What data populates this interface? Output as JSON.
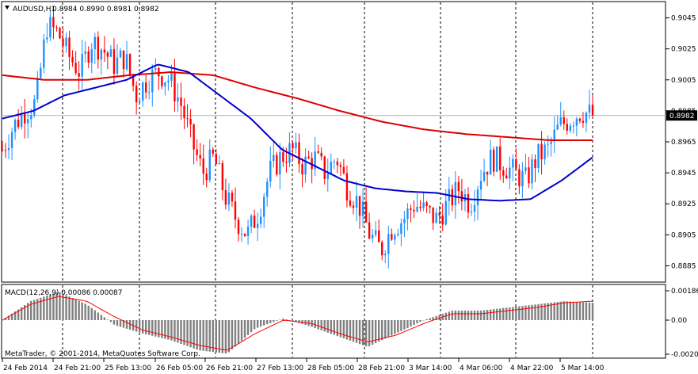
{
  "window": {
    "symbol_label": "AUDUSD,H1",
    "ohlc_label": "0.8984 0.8990 0.8981 0.8982",
    "copyright": "MetaTrader, © 2001-2014, MetaQuotes Software Corp.",
    "current_price_label": "0.8982"
  },
  "macd_panel": {
    "title": "MACD(12,26,9) 0.00086 0.00087",
    "yticks": [
      "0.00186",
      "0.00",
      "-0.00203"
    ]
  },
  "colors": {
    "background": "#ffffff",
    "bull_candle": "#1e90ff",
    "bear_candle": "#ff0000",
    "ma_fast": "#0000cd",
    "ma_slow": "#dd0000",
    "macd_hist": "#808080",
    "macd_signal": "#ff0000",
    "price_marker": "#000000"
  },
  "chart_data": {
    "type": "candlestick",
    "symbol": "AUDUSD",
    "timeframe": "H1",
    "ylim": [
      0.8875,
      0.9055
    ],
    "yticks": [
      "0.9045",
      "0.9025",
      "0.9005",
      "0.8985",
      "0.8965",
      "0.8945",
      "0.8925",
      "0.8905",
      "0.8885"
    ],
    "xticks": [
      "24 Feb 2014",
      "24 Feb 21:00",
      "25 Feb 13:00",
      "26 Feb 05:00",
      "26 Feb 21:00",
      "27 Feb 13:00",
      "28 Feb 05:00",
      "28 Feb 21:00",
      "3 Mar 14:00",
      "4 Mar 06:00",
      "4 Mar 22:00",
      "5 Mar 14:00"
    ],
    "current_price": 0.8982,
    "close_anchors": [
      0.896,
      0.8975,
      0.8985,
      0.899,
      0.904,
      0.9035,
      0.902,
      0.901,
      0.903,
      0.9025,
      0.9015,
      0.902,
      0.8995,
      0.9005,
      0.901,
      0.9005,
      0.899,
      0.8965,
      0.8945,
      0.8955,
      0.893,
      0.8915,
      0.8905,
      0.892,
      0.8945,
      0.8955,
      0.896,
      0.895,
      0.8955,
      0.8945,
      0.8955,
      0.8935,
      0.8925,
      0.8905,
      0.8895,
      0.891,
      0.8915,
      0.8925,
      0.892,
      0.8915,
      0.8925,
      0.8935,
      0.8925,
      0.8945,
      0.8955,
      0.895,
      0.8945,
      0.894,
      0.8955,
      0.896,
      0.8975,
      0.898,
      0.8985,
      0.8982
    ],
    "ma_fast_anchors": [
      0.898,
      0.8985,
      0.8995,
      0.9,
      0.9005,
      0.9015,
      0.901,
      0.8995,
      0.898,
      0.896,
      0.895,
      0.894,
      0.8935,
      0.8933,
      0.8932,
      0.8928,
      0.8927,
      0.8928,
      0.894,
      0.8955
    ],
    "ma_slow_anchors": [
      0.9008,
      0.9005,
      0.9005,
      0.9008,
      0.901,
      0.9008,
      0.9,
      0.8993,
      0.8985,
      0.8978,
      0.8973,
      0.897,
      0.8968,
      0.8966,
      0.8966
    ],
    "macd_hist_anchors": [
      0.0,
      0.0012,
      0.0018,
      0.001,
      -0.0003,
      -0.0008,
      -0.0012,
      -0.0018,
      -0.002,
      -0.0005,
      0.0001,
      -0.0004,
      -0.001,
      -0.0016,
      -0.0008,
      0.0,
      0.0006,
      0.0006,
      0.0008,
      0.001,
      0.0012,
      0.0011
    ],
    "macd_signal_anchors": [
      0.0,
      0.001,
      0.0015,
      0.0012,
      0.0002,
      -0.0006,
      -0.001,
      -0.0015,
      -0.0018,
      -0.0008,
      0.0,
      -0.0002,
      -0.0008,
      -0.0013,
      -0.0009,
      -0.0002,
      0.0004,
      0.0004,
      0.0006,
      0.0008,
      0.0011,
      0.0012
    ]
  }
}
